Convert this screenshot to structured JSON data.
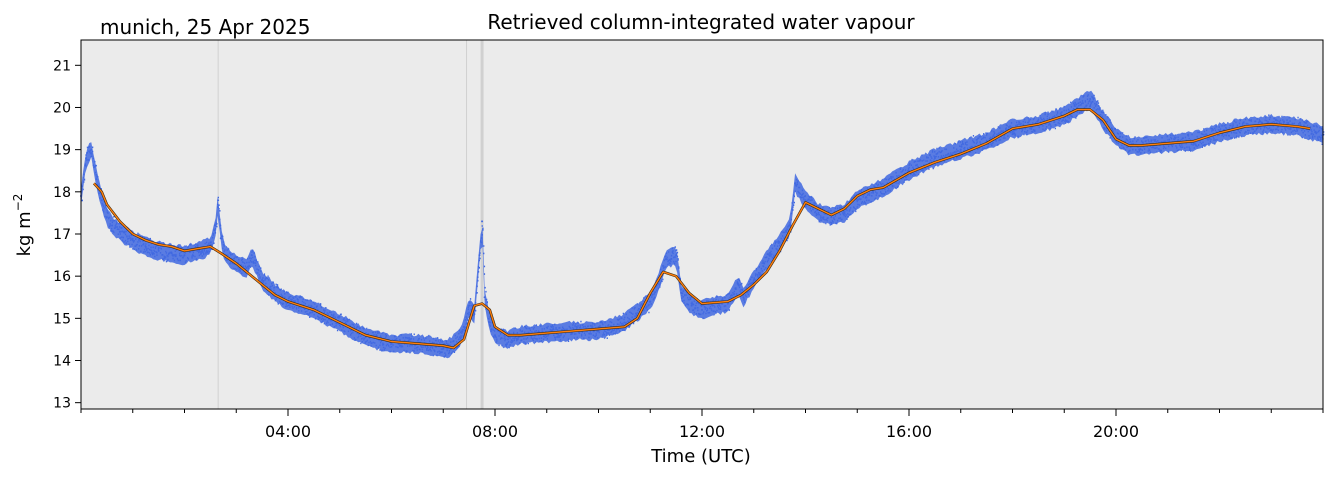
{
  "chart_data": {
    "type": "line",
    "title": "Retrieved column-integrated water vapour",
    "subtitle": "munich, 25 Apr 2025",
    "xlabel": "Time (UTC)",
    "ylabel_base": "kg m",
    "ylabel_exp": "−2",
    "xlim_hours": [
      0,
      24
    ],
    "ylim": [
      12.85,
      21.6
    ],
    "x_ticks": [
      {
        "hour": 4,
        "label": "04:00"
      },
      {
        "hour": 8,
        "label": "08:00"
      },
      {
        "hour": 12,
        "label": "12:00"
      },
      {
        "hour": 16,
        "label": "16:00"
      },
      {
        "hour": 20,
        "label": "20:00"
      }
    ],
    "y_ticks": [
      13,
      14,
      15,
      16,
      17,
      18,
      19,
      20,
      21
    ],
    "background_color": "#ebebeb",
    "vertical_markers_hours": [
      2.65,
      7.45,
      7.75
    ],
    "series": [
      {
        "color": "#4169e1",
        "style": "scatter-band",
        "x": [
          0.0,
          0.1,
          0.2,
          0.3,
          0.4,
          0.5,
          0.6,
          0.75,
          1.0,
          1.25,
          1.5,
          1.75,
          2.0,
          2.25,
          2.5,
          2.6,
          2.65,
          2.7,
          2.8,
          3.0,
          3.2,
          3.3,
          3.5,
          3.75,
          4.0,
          4.5,
          5.0,
          5.5,
          6.0,
          6.5,
          7.0,
          7.1,
          7.3,
          7.4,
          7.5,
          7.6,
          7.7,
          7.75,
          7.8,
          7.9,
          8.0,
          8.25,
          8.5,
          9.0,
          9.5,
          10.0,
          10.5,
          11.0,
          11.2,
          11.3,
          11.5,
          11.6,
          11.8,
          12.0,
          12.2,
          12.5,
          12.7,
          12.8,
          13.0,
          13.2,
          13.5,
          13.7,
          13.8,
          14.0,
          14.25,
          14.5,
          14.75,
          15.0,
          15.5,
          16.0,
          16.5,
          17.0,
          17.5,
          18.0,
          18.5,
          19.0,
          19.25,
          19.5,
          19.75,
          20.0,
          20.25,
          20.5,
          21.0,
          21.5,
          22.0,
          22.5,
          23.0,
          23.5,
          24.0
        ],
        "values": [
          17.9,
          18.8,
          19.0,
          18.3,
          17.8,
          17.4,
          17.2,
          17.05,
          16.85,
          16.7,
          16.6,
          16.55,
          16.5,
          16.6,
          16.7,
          17.2,
          17.8,
          16.9,
          16.5,
          16.3,
          16.2,
          16.5,
          15.9,
          15.6,
          15.4,
          15.2,
          14.9,
          14.55,
          14.4,
          14.4,
          14.3,
          14.3,
          14.5,
          14.8,
          15.3,
          15.1,
          16.5,
          17.3,
          15.5,
          14.9,
          14.6,
          14.5,
          14.6,
          14.65,
          14.7,
          14.7,
          14.9,
          15.4,
          16.0,
          16.4,
          16.5,
          15.6,
          15.3,
          15.2,
          15.3,
          15.35,
          15.8,
          15.5,
          15.9,
          16.3,
          16.8,
          17.2,
          18.2,
          17.8,
          17.5,
          17.4,
          17.5,
          17.8,
          18.1,
          18.5,
          18.8,
          19.0,
          19.2,
          19.5,
          19.6,
          19.8,
          20.0,
          20.2,
          19.7,
          19.3,
          19.1,
          19.1,
          19.15,
          19.2,
          19.4,
          19.55,
          19.6,
          19.55,
          19.35
        ]
      },
      {
        "color": "#ff7f0e",
        "style": "line",
        "x": [
          0.25,
          0.4,
          0.5,
          0.75,
          1.0,
          1.25,
          1.5,
          1.75,
          2.0,
          2.25,
          2.5,
          2.7,
          3.0,
          3.2,
          3.5,
          3.75,
          4.0,
          4.5,
          5.0,
          5.5,
          6.0,
          6.5,
          7.0,
          7.2,
          7.4,
          7.5,
          7.6,
          7.75,
          7.9,
          8.0,
          8.25,
          8.5,
          9.0,
          9.5,
          10.0,
          10.5,
          10.75,
          11.0,
          11.25,
          11.5,
          11.75,
          12.0,
          12.5,
          12.75,
          13.0,
          13.25,
          13.5,
          13.75,
          14.0,
          14.25,
          14.5,
          14.75,
          15.0,
          15.25,
          15.5,
          16.0,
          16.5,
          17.0,
          17.5,
          18.0,
          18.5,
          19.0,
          19.25,
          19.5,
          19.75,
          20.0,
          20.25,
          20.5,
          21.0,
          21.5,
          22.0,
          22.5,
          23.0,
          23.5,
          23.75
        ],
        "values": [
          18.2,
          18.0,
          17.7,
          17.3,
          17.0,
          16.85,
          16.75,
          16.7,
          16.6,
          16.65,
          16.7,
          16.55,
          16.3,
          16.1,
          15.8,
          15.55,
          15.4,
          15.2,
          14.9,
          14.6,
          14.45,
          14.4,
          14.35,
          14.3,
          14.5,
          14.9,
          15.3,
          15.35,
          15.2,
          14.8,
          14.6,
          14.6,
          14.65,
          14.7,
          14.75,
          14.8,
          15.0,
          15.6,
          16.1,
          16.0,
          15.6,
          15.35,
          15.4,
          15.55,
          15.8,
          16.1,
          16.6,
          17.2,
          17.75,
          17.6,
          17.45,
          17.6,
          17.9,
          18.05,
          18.1,
          18.45,
          18.7,
          18.9,
          19.15,
          19.5,
          19.6,
          19.8,
          19.95,
          19.95,
          19.7,
          19.25,
          19.1,
          19.1,
          19.15,
          19.2,
          19.4,
          19.55,
          19.6,
          19.55,
          19.5
        ]
      }
    ]
  }
}
